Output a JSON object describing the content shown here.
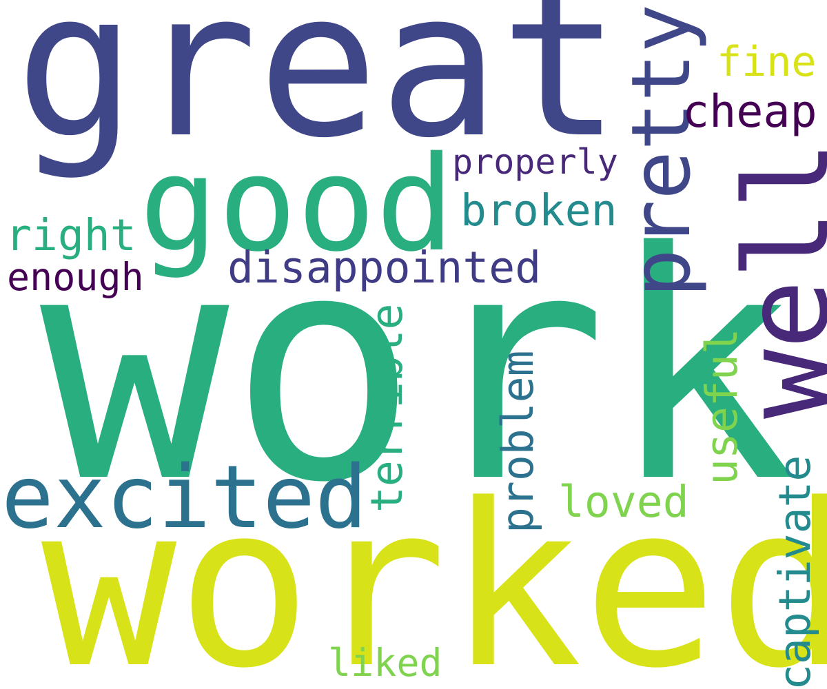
{
  "palette": {
    "dark_indigo": "#404788",
    "green": "#29af7f",
    "yellow": "#d8e219",
    "purple": "#482878",
    "blue_teal": "#2c728e",
    "teal": "#238a8d",
    "light_green": "#7fd34e",
    "dark_purple": "#440154",
    "violet": "#3f3b85",
    "lime": "#a0da39"
  },
  "words": {
    "great": "great",
    "work": "work",
    "worked": "worked",
    "good": "good",
    "well": "well",
    "pretty": "pretty",
    "excited": "excited",
    "disappointed": "disappointed",
    "broken": "broken",
    "cheap": "cheap",
    "fine": "fine",
    "properly": "properly",
    "right": "right",
    "enough": "enough",
    "terrible": "terrible",
    "problem": "problem",
    "useful": "useful",
    "loved": "loved",
    "captivate": "captivate",
    "liked": "liked"
  }
}
